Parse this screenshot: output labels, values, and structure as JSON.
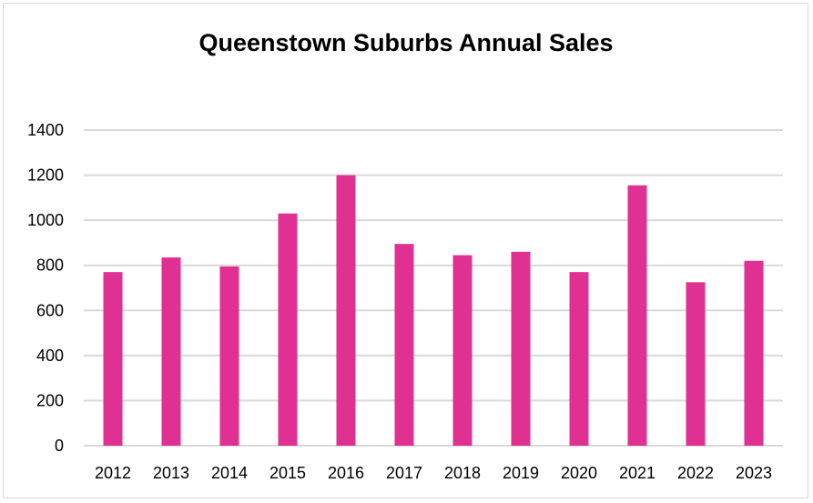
{
  "chart_data": {
    "type": "bar",
    "title": "Queenstown Suburbs Annual Sales",
    "xlabel": "",
    "ylabel": "",
    "categories": [
      "2012",
      "2013",
      "2014",
      "2015",
      "2016",
      "2017",
      "2018",
      "2019",
      "2020",
      "2021",
      "2022",
      "2023"
    ],
    "values": [
      770,
      835,
      795,
      1030,
      1200,
      895,
      845,
      860,
      770,
      1155,
      725,
      820
    ],
    "ylim": [
      0,
      1400
    ],
    "yticks": [
      "0",
      "200",
      "400",
      "600",
      "800",
      "1000",
      "1200",
      "1400"
    ],
    "grid": true,
    "legend": "none",
    "bar_color": "#e03092",
    "grid_color": "#d9d9d9"
  }
}
